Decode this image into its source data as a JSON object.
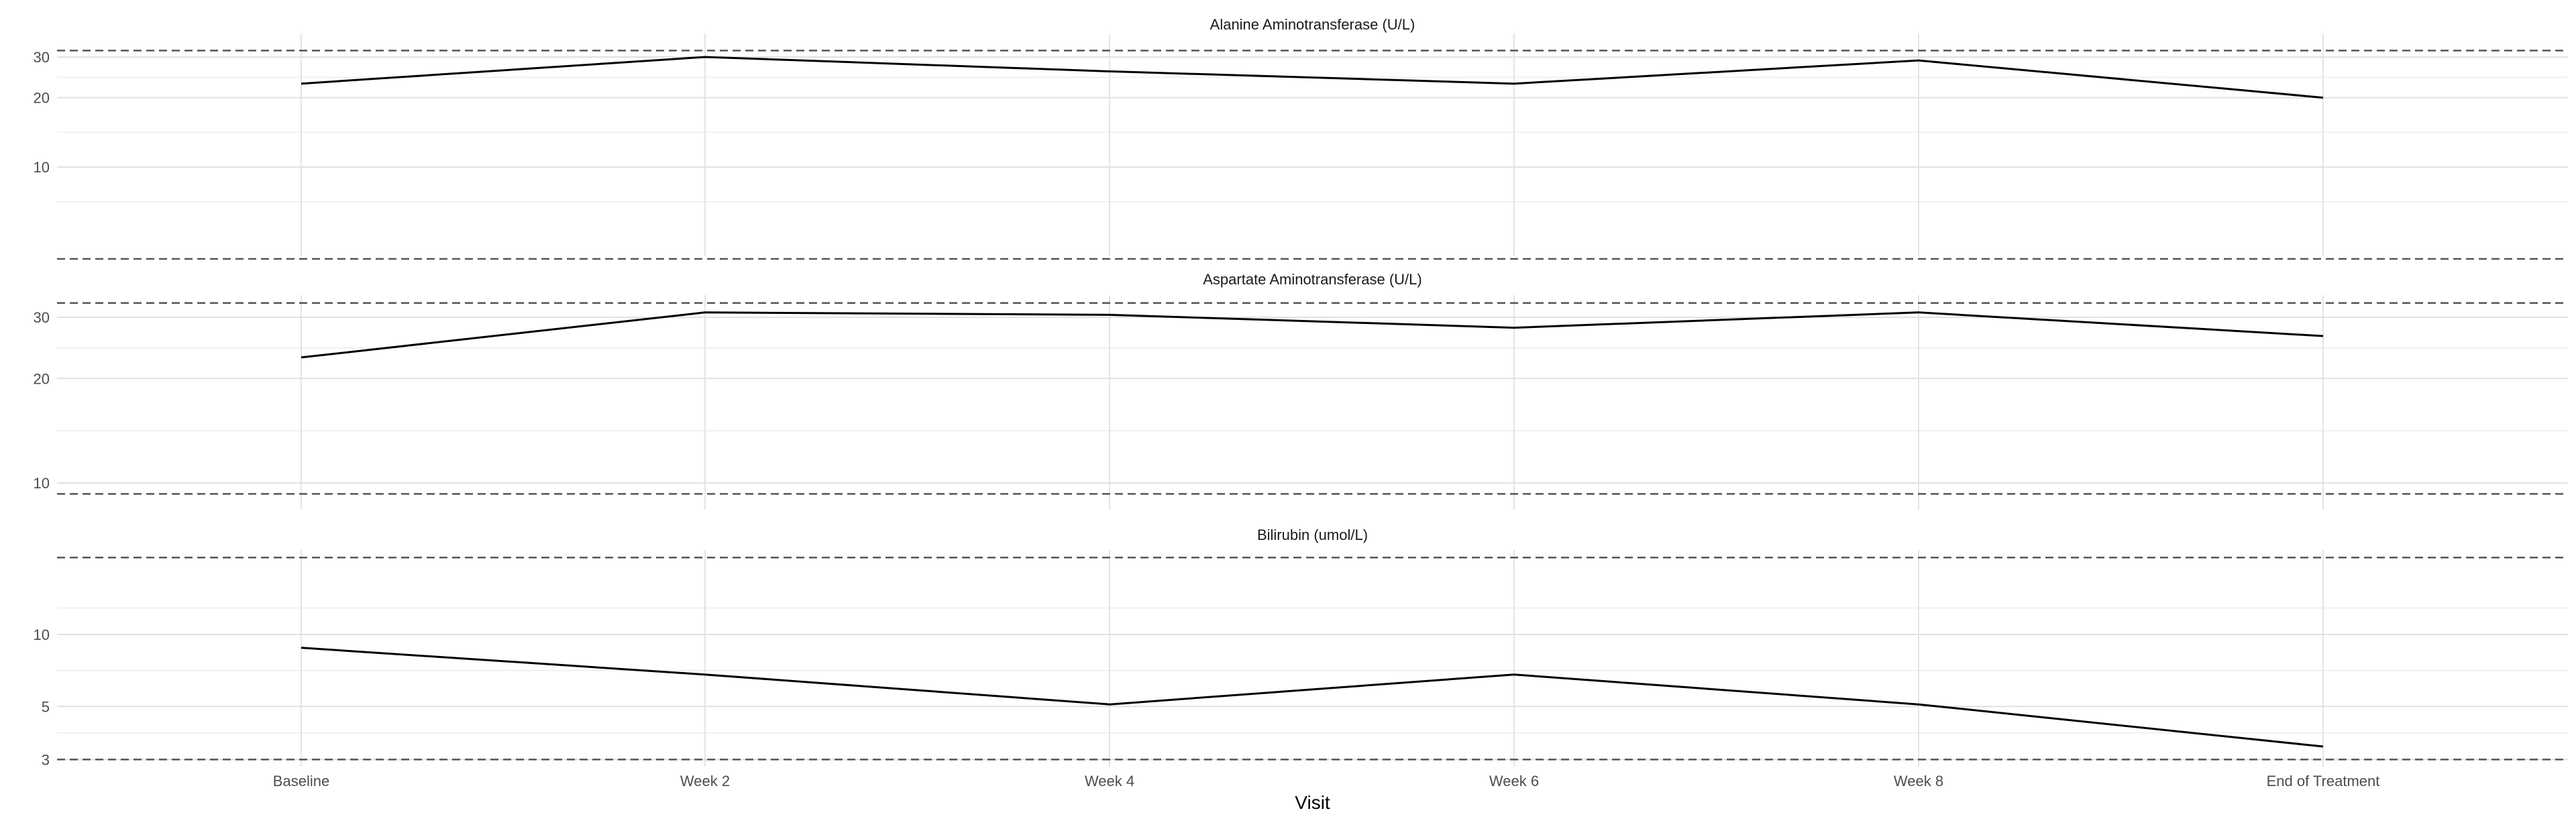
{
  "chart_data": {
    "type": "line",
    "xlabel": "Visit",
    "categories": [
      "Baseline",
      "Week 2",
      "Week 4",
      "Week 6",
      "Week 8",
      "End of Treatment"
    ],
    "reference_line_style": "dashed",
    "grid": true,
    "panels": [
      {
        "title": "Alanine Aminotransferase (U/L)",
        "y_scale": "log",
        "ylim": [
          4,
          35
        ],
        "yticks": [
          10,
          20,
          30
        ],
        "values": [
          23,
          30,
          26,
          23,
          29,
          20
        ],
        "reference_lines": [
          4,
          32
        ],
        "line_color": "#000000"
      },
      {
        "title": "Aspartate Aminotransferase (U/L)",
        "y_scale": "log",
        "ylim": [
          8.6,
          34
        ],
        "yticks": [
          10,
          20,
          30
        ],
        "values": [
          23,
          31,
          30.5,
          28,
          31,
          26.5
        ],
        "reference_lines": [
          9.3,
          33
        ],
        "line_color": "#000000"
      },
      {
        "title": "Bilirubin (umol/L)",
        "y_scale": "log",
        "ylim": [
          2.8,
          22
        ],
        "yticks": [
          3,
          5,
          10
        ],
        "values": [
          8.8,
          6.8,
          5.1,
          6.8,
          5.1,
          3.4
        ],
        "reference_lines": [
          3,
          21
        ],
        "line_color": "#000000"
      }
    ]
  }
}
